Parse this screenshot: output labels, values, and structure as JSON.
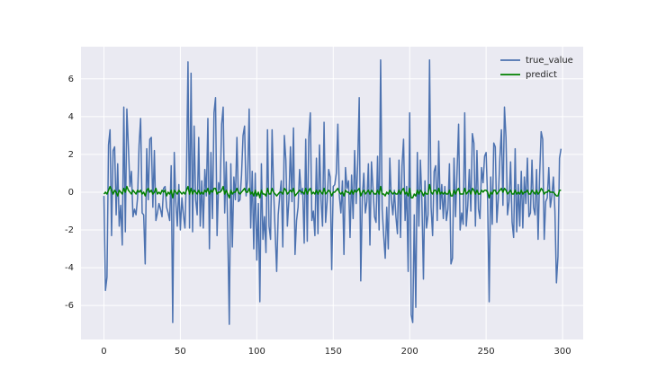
{
  "chart_data": {
    "type": "line",
    "x": [
      0,
      1,
      2,
      3,
      4,
      5,
      6,
      7,
      8,
      9,
      10,
      11,
      12,
      13,
      14,
      15,
      16,
      17,
      18,
      19,
      20,
      21,
      22,
      23,
      24,
      25,
      26,
      27,
      28,
      29,
      30,
      31,
      32,
      33,
      34,
      35,
      36,
      37,
      38,
      39,
      40,
      41,
      42,
      43,
      44,
      45,
      46,
      47,
      48,
      49,
      50,
      51,
      52,
      53,
      54,
      55,
      56,
      57,
      58,
      59,
      60,
      61,
      62,
      63,
      64,
      65,
      66,
      67,
      68,
      69,
      70,
      71,
      72,
      73,
      74,
      75,
      76,
      77,
      78,
      79,
      80,
      81,
      82,
      83,
      84,
      85,
      86,
      87,
      88,
      89,
      90,
      91,
      92,
      93,
      94,
      95,
      96,
      97,
      98,
      99,
      100,
      101,
      102,
      103,
      104,
      105,
      106,
      107,
      108,
      109,
      110,
      111,
      112,
      113,
      114,
      115,
      116,
      117,
      118,
      119,
      120,
      121,
      122,
      123,
      124,
      125,
      126,
      127,
      128,
      129,
      130,
      131,
      132,
      133,
      134,
      135,
      136,
      137,
      138,
      139,
      140,
      141,
      142,
      143,
      144,
      145,
      146,
      147,
      148,
      149,
      150,
      151,
      152,
      153,
      154,
      155,
      156,
      157,
      158,
      159,
      160,
      161,
      162,
      163,
      164,
      165,
      166,
      167,
      168,
      169,
      170,
      171,
      172,
      173,
      174,
      175,
      176,
      177,
      178,
      179,
      180,
      181,
      182,
      183,
      184,
      185,
      186,
      187,
      188,
      189,
      190,
      191,
      192,
      193,
      194,
      195,
      196,
      197,
      198,
      199,
      200,
      201,
      202,
      203,
      204,
      205,
      206,
      207,
      208,
      209,
      210,
      211,
      212,
      213,
      214,
      215,
      216,
      217,
      218,
      219,
      220,
      221,
      222,
      223,
      224,
      225,
      226,
      227,
      228,
      229,
      230,
      231,
      232,
      233,
      234,
      235,
      236,
      237,
      238,
      239,
      240,
      241,
      242,
      243,
      244,
      245,
      246,
      247,
      248,
      249,
      250,
      251,
      252,
      253,
      254,
      255,
      256,
      257,
      258,
      259,
      260,
      261,
      262,
      263,
      264,
      265,
      266,
      267,
      268,
      269,
      270,
      271,
      272,
      273,
      274,
      275,
      276,
      277,
      278,
      279,
      280,
      281,
      282,
      283,
      284,
      285,
      286,
      287,
      288,
      289,
      290,
      291,
      292,
      293,
      294,
      295,
      296,
      297,
      298,
      299
    ],
    "series": [
      {
        "name": "true_value",
        "color": "#4c72b0",
        "values": [
          -0.2,
          -5.2,
          -4.5,
          2.5,
          3.3,
          -2.3,
          2.2,
          2.4,
          -1.2,
          1.5,
          -1.8,
          -0.7,
          -2.8,
          4.5,
          -2.1,
          4.4,
          2.4,
          0.3,
          1.1,
          -1.3,
          -0.9,
          -1.2,
          -0.3,
          2.5,
          3.9,
          -1.1,
          -1.2,
          -3.8,
          2.3,
          -0.4,
          2.8,
          2.9,
          -0.8,
          2.2,
          -1.5,
          -1.1,
          -0.6,
          -0.9,
          -1.3,
          0.2,
          0.3,
          -0.8,
          -1.1,
          -1.5,
          1.4,
          -6.9,
          2.1,
          -0.5,
          -1.8,
          0.4,
          -2.0,
          -0.3,
          -1.2,
          -1.9,
          1.0,
          6.9,
          -1.9,
          6.3,
          -2.1,
          3.5,
          -0.4,
          -1.2,
          2.9,
          -1.8,
          0.6,
          -1.9,
          1.2,
          -0.2,
          3.9,
          -3.0,
          2.1,
          -1.4,
          4.2,
          5.0,
          -2.3,
          0.5,
          0.1,
          3.6,
          4.5,
          -1.1,
          1.6,
          -2.0,
          -7.0,
          1.5,
          -2.9,
          0.8,
          -0.4,
          2.9,
          -0.5,
          -0.4,
          0.9,
          3.0,
          3.5,
          -0.2,
          0.7,
          4.4,
          -1.9,
          1.1,
          -3.0,
          1.0,
          -3.6,
          -0.6,
          -5.8,
          1.5,
          -2.5,
          -1.3,
          -3.2,
          3.3,
          -1.8,
          -2.5,
          3.3,
          0.1,
          -2.1,
          -4.2,
          -1.2,
          -0.2,
          0.6,
          -2.9,
          3.0,
          1.7,
          -1.8,
          -0.4,
          2.4,
          -0.5,
          3.4,
          -3.3,
          -1.5,
          -0.8,
          1.2,
          -0.1,
          0.2,
          -2.7,
          2.8,
          -2.6,
          2.9,
          4.2,
          -1.5,
          -1.0,
          -2.3,
          1.8,
          -2.2,
          2.5,
          -0.4,
          -1.8,
          3.7,
          -1.6,
          -0.5,
          1.2,
          0.8,
          -4.1,
          0.3,
          0.4,
          1.0,
          3.6,
          -0.2,
          -1.1,
          0.6,
          -3.3,
          1.3,
          0.2,
          0.6,
          -2.4,
          0.9,
          -1.4,
          2.2,
          -0.6,
          1.5,
          5.0,
          -4.7,
          -0.3,
          1.0,
          -1.1,
          -0.5,
          1.5,
          -2.8,
          1.6,
          0.2,
          -1.3,
          -1.6,
          1.9,
          -2.0,
          7.0,
          -0.9,
          -2.3,
          -3.5,
          -0.8,
          -3.0,
          1.8,
          -0.4,
          -1.2,
          0.1,
          -1.3,
          -2.2,
          1.7,
          -2.4,
          1.4,
          2.8,
          -1.5,
          0.3,
          -4.2,
          4.2,
          -6.5,
          -6.9,
          -1.2,
          -6.1,
          2.1,
          -1.8,
          1.7,
          -0.5,
          -4.6,
          0.6,
          -1.9,
          -1.2,
          7.0,
          -0.8,
          -2.3,
          1.1,
          1.4,
          -1.5,
          2.7,
          -0.9,
          0.4,
          -1.4,
          0.3,
          -1.5,
          -0.9,
          1.5,
          -3.8,
          -3.5,
          1.8,
          -1.3,
          1.1,
          3.6,
          -2.0,
          -1.1,
          -1.7,
          4.2,
          -1.8,
          -0.7,
          1.2,
          -1.0,
          3.1,
          2.6,
          -1.8,
          2.2,
          -0.9,
          -1.4,
          1.3,
          0.5,
          1.9,
          2.1,
          -0.5,
          -5.8,
          0.8,
          -1.7,
          2.6,
          2.4,
          -1.6,
          -0.3,
          1.8,
          3.3,
          -0.7,
          4.5,
          2.9,
          -1.2,
          -0.5,
          1.6,
          -1.6,
          -2.4,
          2.3,
          -2.1,
          0.4,
          -1.8,
          1.1,
          -1.9,
          0.8,
          -0.6,
          1.8,
          -1.3,
          -1.1,
          1.7,
          -0.8,
          -1.2,
          1.2,
          -2.5,
          0.9,
          3.2,
          2.8,
          -2.5,
          -0.5,
          -0.3,
          1.3,
          -0.8,
          -0.2,
          0.8,
          -1.0,
          -4.8,
          -3.4,
          1.8,
          2.3
        ]
      },
      {
        "name": "predict",
        "color": "#008000",
        "values": [
          -0.1,
          0.0,
          -0.1,
          0.1,
          0.3,
          0.1,
          -0.1,
          0.1,
          0.0,
          -0.2,
          0.1,
          0.0,
          -0.1,
          0.2,
          0.0,
          0.3,
          0.1,
          0.0,
          -0.1,
          0.1,
          0.0,
          -0.1,
          0.1,
          0.0,
          0.1,
          -0.1,
          0.0,
          -0.2,
          0.1,
          0.2,
          0.0,
          0.1,
          -0.1,
          0.0,
          0.2,
          -0.1,
          0.0,
          -0.1,
          0.1,
          0.0,
          0.1,
          -0.2,
          0.0,
          -0.1,
          0.1,
          -0.3,
          0.1,
          0.0,
          -0.1,
          0.1,
          0.0,
          -0.1,
          0.0,
          -0.1,
          0.1,
          0.3,
          -0.1,
          0.2,
          -0.1,
          0.1,
          0.0,
          -0.1,
          0.1,
          -0.1,
          0.0,
          -0.1,
          0.1,
          0.0,
          0.2,
          -0.1,
          0.1,
          0.0,
          0.2,
          0.2,
          -0.1,
          0.0,
          0.0,
          0.1,
          0.3,
          -0.1,
          0.1,
          -0.1,
          -0.3,
          0.1,
          -0.1,
          0.0,
          0.0,
          0.2,
          0.0,
          -0.1,
          0.0,
          0.1,
          0.2,
          0.0,
          0.0,
          0.2,
          -0.1,
          0.0,
          -0.2,
          0.1,
          -0.2,
          0.0,
          -0.3,
          0.1,
          -0.1,
          -0.1,
          -0.2,
          0.2,
          -0.1,
          -0.1,
          0.2,
          0.0,
          -0.1,
          -0.2,
          -0.1,
          0.0,
          0.0,
          -0.1,
          0.2,
          0.1,
          -0.1,
          0.0,
          0.1,
          0.0,
          0.2,
          -0.2,
          -0.1,
          0.0,
          0.1,
          0.0,
          0.0,
          -0.1,
          0.2,
          -0.1,
          0.1,
          0.2,
          -0.1,
          0.0,
          -0.1,
          0.1,
          -0.1,
          0.1,
          0.0,
          -0.1,
          0.2,
          -0.1,
          0.0,
          0.1,
          0.0,
          -0.2,
          0.0,
          0.0,
          0.1,
          0.2,
          0.0,
          -0.1,
          0.0,
          -0.2,
          0.1,
          0.0,
          0.0,
          -0.1,
          0.1,
          -0.1,
          0.1,
          0.0,
          0.1,
          0.2,
          -0.2,
          0.0,
          0.1,
          -0.1,
          0.0,
          0.1,
          -0.1,
          0.1,
          0.0,
          -0.1,
          -0.1,
          0.1,
          -0.1,
          0.3,
          -0.1,
          -0.1,
          -0.2,
          0.0,
          -0.1,
          0.1,
          0.0,
          -0.1,
          0.0,
          -0.1,
          -0.1,
          0.1,
          -0.1,
          0.1,
          0.2,
          -0.1,
          0.0,
          -0.2,
          0.2,
          -0.3,
          -0.3,
          -0.1,
          -0.2,
          0.1,
          -0.1,
          0.1,
          0.0,
          -0.2,
          0.0,
          -0.1,
          -0.1,
          0.4,
          0.0,
          -0.1,
          0.1,
          0.1,
          -0.1,
          0.2,
          -0.1,
          0.0,
          -0.1,
          0.0,
          -0.1,
          -0.1,
          0.1,
          -0.2,
          -0.2,
          0.1,
          -0.1,
          0.1,
          0.2,
          -0.1,
          -0.1,
          -0.1,
          0.2,
          -0.1,
          0.0,
          0.1,
          -0.1,
          0.2,
          0.1,
          -0.1,
          0.1,
          -0.1,
          -0.1,
          0.1,
          0.0,
          0.1,
          0.1,
          0.0,
          -0.3,
          0.0,
          -0.1,
          0.1,
          0.1,
          -0.1,
          0.0,
          0.1,
          0.2,
          0.0,
          0.2,
          0.1,
          -0.1,
          0.0,
          0.1,
          -0.1,
          -0.1,
          0.1,
          -0.1,
          0.0,
          -0.1,
          0.1,
          -0.1,
          0.0,
          0.0,
          0.1,
          -0.1,
          -0.1,
          0.1,
          0.0,
          -0.1,
          0.1,
          -0.1,
          0.0,
          0.2,
          0.1,
          -0.1,
          0.0,
          0.0,
          0.1,
          0.0,
          0.0,
          0.0,
          -0.1,
          -0.2,
          -0.2,
          0.1,
          0.1
        ]
      }
    ],
    "xlim": [
      -15,
      313.5
    ],
    "ylim": [
      -7.8,
      7.7
    ],
    "xticks": [
      0,
      50,
      100,
      150,
      200,
      250,
      300
    ],
    "yticks": [
      -6,
      -4,
      -2,
      0,
      2,
      4,
      6
    ],
    "grid": true,
    "legend": "upper right"
  }
}
